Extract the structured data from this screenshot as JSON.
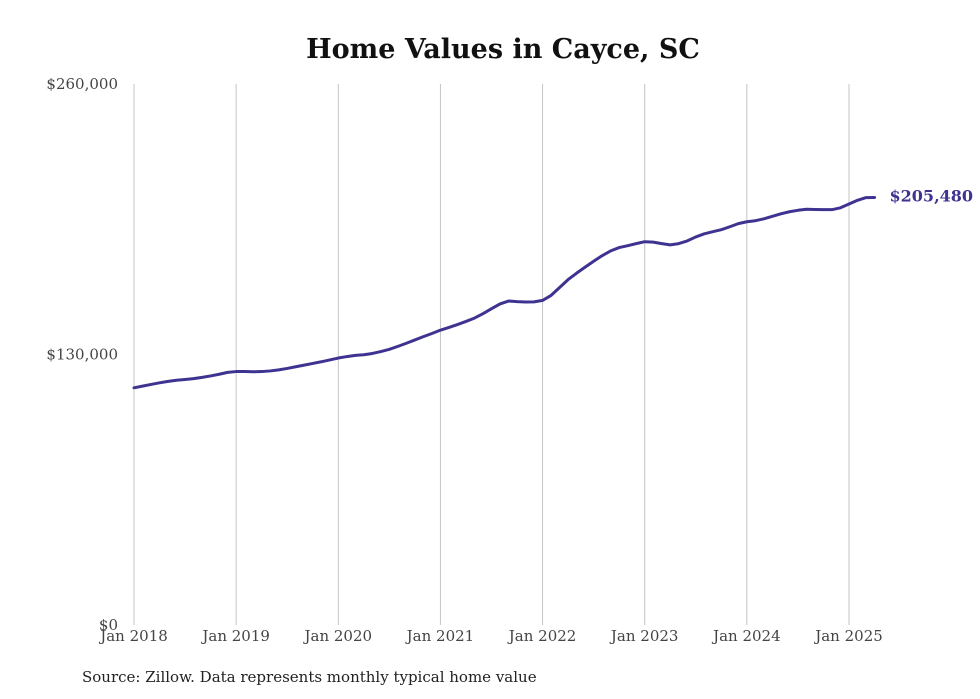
{
  "chart_data": {
    "type": "line",
    "title": "Home Values in Cayce, SC",
    "xlabel": "",
    "ylabel": "",
    "ylim": [
      0,
      260000
    ],
    "yticks": [
      0,
      130000,
      260000
    ],
    "ytick_labels": [
      "$0",
      "$130,000",
      "$260,000"
    ],
    "xticks": [
      "2018-01",
      "2019-01",
      "2020-01",
      "2021-01",
      "2022-01",
      "2023-01",
      "2024-01",
      "2025-01"
    ],
    "xtick_labels": [
      "Jan 2018",
      "Jan 2019",
      "Jan 2020",
      "Jan 2021",
      "Jan 2022",
      "Jan 2023",
      "Jan 2024",
      "Jan 2025"
    ],
    "grid": "vertical",
    "color": "#3e3391",
    "end_label": "$205,480",
    "series": [
      {
        "x": [
          "2018-01",
          "2018-02",
          "2018-03",
          "2018-04",
          "2018-05",
          "2018-06",
          "2018-07",
          "2018-08",
          "2018-09",
          "2018-10",
          "2018-11",
          "2018-12",
          "2019-01",
          "2019-02",
          "2019-03",
          "2019-04",
          "2019-05",
          "2019-06",
          "2019-07",
          "2019-08",
          "2019-09",
          "2019-10",
          "2019-11",
          "2019-12",
          "2020-01",
          "2020-02",
          "2020-03",
          "2020-04",
          "2020-05",
          "2020-06",
          "2020-07",
          "2020-08",
          "2020-09",
          "2020-10",
          "2020-11",
          "2020-12",
          "2021-01",
          "2021-02",
          "2021-03",
          "2021-04",
          "2021-05",
          "2021-06",
          "2021-07",
          "2021-08",
          "2021-09",
          "2021-10",
          "2021-11",
          "2021-12",
          "2022-01",
          "2022-02",
          "2022-03",
          "2022-04",
          "2022-05",
          "2022-06",
          "2022-07",
          "2022-08",
          "2022-09",
          "2022-10",
          "2022-11",
          "2022-12",
          "2023-01",
          "2023-02",
          "2023-03",
          "2023-04",
          "2023-05",
          "2023-06",
          "2023-07",
          "2023-08",
          "2023-09",
          "2023-10",
          "2023-11",
          "2023-12",
          "2024-01",
          "2024-02",
          "2024-03",
          "2024-04",
          "2024-05",
          "2024-06",
          "2024-07",
          "2024-08",
          "2024-09",
          "2024-10",
          "2024-11",
          "2024-12",
          "2025-01",
          "2025-02",
          "2025-03",
          "2025-04"
        ],
        "values": [
          114000,
          114800,
          115600,
          116400,
          117100,
          117600,
          118000,
          118400,
          119000,
          119700,
          120500,
          121400,
          121800,
          121800,
          121700,
          121800,
          122100,
          122600,
          123300,
          124100,
          124900,
          125700,
          126500,
          127400,
          128300,
          129000,
          129600,
          129900,
          130500,
          131400,
          132500,
          133900,
          135400,
          137000,
          138600,
          140100,
          141700,
          143000,
          144400,
          145900,
          147500,
          149600,
          152000,
          154300,
          155700,
          155400,
          155200,
          155300,
          156000,
          158400,
          162200,
          166000,
          169100,
          172000,
          174800,
          177500,
          179800,
          181400,
          182300,
          183300,
          184200,
          184000,
          183300,
          182700,
          183300,
          184600,
          186500,
          188000,
          189000,
          190000,
          191400,
          192900,
          193800,
          194300,
          195200,
          196400,
          197600,
          198600,
          199300,
          199800,
          199700,
          199600,
          199600,
          200500,
          202300,
          204100,
          205400,
          205480
        ]
      }
    ]
  },
  "footer": {
    "source": "Source: Zillow. Data represents monthly typical home value"
  }
}
